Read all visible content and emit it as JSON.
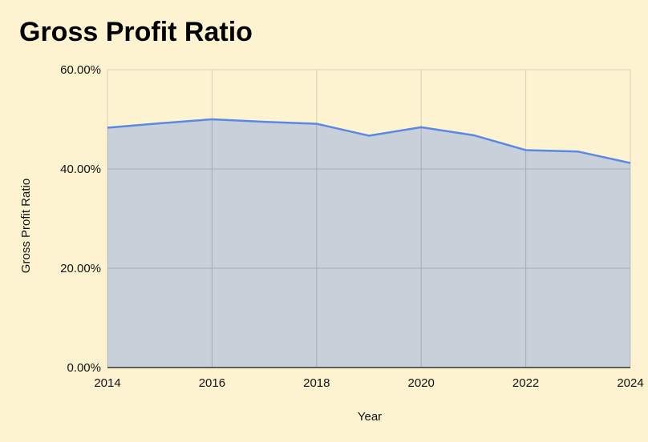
{
  "chart_data": {
    "type": "area",
    "title": "Gross Profit Ratio",
    "xlabel": "Year",
    "ylabel": "Gross Profit Ratio",
    "x": [
      2014,
      2015,
      2016,
      2017,
      2018,
      2019,
      2020,
      2021,
      2022,
      2023,
      2024
    ],
    "series": [
      {
        "values": [
          48.3,
          49.2,
          50.0,
          49.5,
          49.1,
          46.7,
          48.4,
          46.8,
          43.8,
          43.5,
          41.2
        ]
      }
    ],
    "xlim": [
      2014,
      2024
    ],
    "ylim": [
      0,
      60
    ],
    "x_ticks": [
      2014,
      2016,
      2018,
      2020,
      2022,
      2024
    ],
    "x_tick_labels": [
      "2014",
      "2016",
      "2018",
      "2020",
      "2022",
      "2024"
    ],
    "y_ticks": [
      0,
      20,
      40,
      60
    ],
    "y_tick_labels": [
      "0.00%",
      "20.00%",
      "40.00%",
      "60.00%"
    ],
    "grid": true,
    "colors": {
      "background": "#fef3d1",
      "line": "#5b87e6",
      "fill": "#c8d0da",
      "grid_light": "#d9d0b5",
      "grid_dark": "#a6adb6",
      "axis": "#333333"
    }
  }
}
